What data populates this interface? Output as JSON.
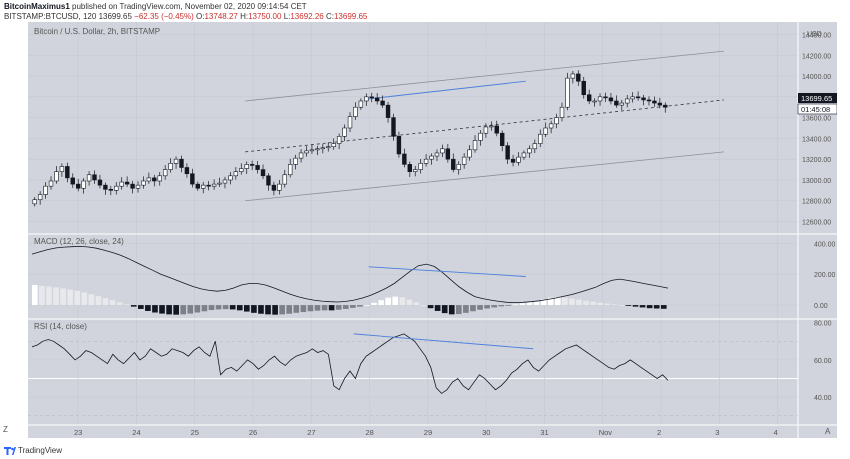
{
  "header": {
    "line1_author": "BitcoinMaximus1",
    "line1_rest": "published on TradingView.com, November 02, 2020 09:14:54 CET",
    "symbol": "BITSTAMP:BTCUSD, 120",
    "last": "13699.65",
    "change": "−62.35 (−0.45%)",
    "o_label": "O:",
    "o": "13748.27",
    "h_label": "H:",
    "h": "13750.00",
    "l_label": "L:",
    "l": "13692.26",
    "c_label": "C:",
    "c": "13699.65"
  },
  "chart_title": "Bitcoin / U.S. Dollar, 2h, BITSTAMP",
  "currency": "USD",
  "price_tag": "13699.65",
  "countdown": "01:45:08",
  "macd_label": "MACD (12, 26, close, 24)",
  "rsi_label": "RSI (14, close)",
  "footer": {
    "brand": "TradingView",
    "corner_left": "Z",
    "corner_right": "A"
  },
  "chart_data": [
    {
      "type": "candlestick",
      "title": "Bitcoin / U.S. Dollar, 2h, BITSTAMP",
      "x_ticks": [
        "23",
        "24",
        "25",
        "26",
        "27",
        "28",
        "29",
        "30",
        "31",
        "Nov",
        "2",
        "3",
        "4"
      ],
      "y_ticks": [
        "12600.00",
        "12800.00",
        "13000.00",
        "13200.00",
        "13400.00",
        "13600.00",
        "13800.00",
        "14000.00",
        "14200.00",
        "14400.00"
      ],
      "ylim": [
        12480,
        14520
      ],
      "close_series": [
        12810,
        12860,
        12940,
        12990,
        13080,
        13130,
        13020,
        12960,
        12920,
        12990,
        13050,
        13000,
        12950,
        12910,
        12900,
        12940,
        12980,
        12960,
        12920,
        12950,
        12990,
        13020,
        12990,
        13040,
        13100,
        13160,
        13200,
        13120,
        13060,
        12960,
        12920,
        12950,
        12940,
        12960,
        12970,
        13000,
        13040,
        13080,
        13110,
        13150,
        13140,
        13100,
        13040,
        12950,
        12900,
        12960,
        13050,
        13150,
        13210,
        13260,
        13280,
        13290,
        13300,
        13310,
        13320,
        13350,
        13420,
        13500,
        13610,
        13700,
        13760,
        13800,
        13790,
        13760,
        13720,
        13600,
        13420,
        13250,
        13150,
        13080,
        13100,
        13160,
        13200,
        13230,
        13260,
        13300,
        13200,
        13100,
        13150,
        13220,
        13290,
        13380,
        13450,
        13510,
        13520,
        13450,
        13330,
        13200,
        13170,
        13220,
        13260,
        13300,
        13350,
        13440,
        13500,
        13540,
        13600,
        13700,
        13980,
        14020,
        13950,
        13820,
        13760,
        13760,
        13800,
        13790,
        13760,
        13720,
        13740,
        13780,
        13800,
        13790,
        13770,
        13760,
        13740,
        13720,
        13700
      ],
      "upper_channel": [
        [
          0.285,
          13760
        ],
        [
          0.925,
          14240
        ]
      ],
      "mid_channel": [
        [
          0.285,
          13270
        ],
        [
          0.925,
          13770
        ]
      ],
      "lower_channel": [
        [
          0.285,
          12800
        ],
        [
          0.925,
          13270
        ]
      ],
      "divergence_line": [
        [
          0.45,
          13780
        ],
        [
          0.66,
          13950
        ]
      ]
    },
    {
      "type": "line",
      "title": "MACD (12, 26, close, 24)",
      "y_ticks": [
        "0.00",
        "200.00",
        "400.00"
      ],
      "ylim": [
        -90,
        460
      ],
      "macd": [
        330,
        345,
        360,
        370,
        375,
        378,
        380,
        376,
        368,
        355,
        340,
        322,
        300,
        275,
        250,
        225,
        200,
        180,
        160,
        140,
        120,
        105,
        95,
        90,
        95,
        110,
        130,
        140,
        140,
        130,
        112,
        92,
        72,
        55,
        42,
        32,
        26,
        22,
        20,
        24,
        32,
        45,
        62,
        85,
        110,
        140,
        180,
        220,
        255,
        265,
        250,
        210,
        165,
        120,
        85,
        55,
        42,
        32,
        24,
        18,
        16,
        18,
        22,
        28,
        36,
        45,
        56,
        68,
        82,
        98,
        115,
        140,
        160,
        168,
        160,
        150,
        140,
        130,
        120,
        110
      ],
      "histogram": [
        130,
        125,
        120,
        115,
        108,
        100,
        92,
        82,
        70,
        58,
        45,
        32,
        18,
        5,
        -10,
        -25,
        -38,
        -48,
        -55,
        -60,
        -62,
        -60,
        -55,
        -48,
        -40,
        -32,
        -28,
        -26,
        -28,
        -34,
        -42,
        -50,
        -56,
        -60,
        -62,
        -60,
        -56,
        -50,
        -45,
        -40,
        -36,
        -34,
        -34,
        -30,
        -25,
        -18,
        -10,
        0,
        15,
        32,
        48,
        55,
        50,
        35,
        18,
        0,
        -20,
        -38,
        -52,
        -60,
        -58,
        -50,
        -40,
        -30,
        -22,
        -15,
        -8,
        -2,
        5,
        12,
        20,
        28,
        38,
        48,
        52,
        48,
        42,
        35,
        28,
        22,
        15,
        10,
        5,
        0,
        -5,
        -10,
        -15,
        -20,
        -22,
        -24
      ],
      "divergence_line": [
        [
          0.45,
          248
        ],
        [
          0.66,
          185
        ]
      ]
    },
    {
      "type": "line",
      "title": "RSI (14, close)",
      "y_ticks": [
        "40.00",
        "60.00",
        "80.00"
      ],
      "ylim": [
        25,
        82
      ],
      "values": [
        67,
        68,
        70,
        71,
        70,
        68,
        66,
        63,
        60,
        62,
        65,
        64,
        62,
        60,
        58,
        63,
        60,
        58,
        61,
        64,
        60,
        62,
        66,
        64,
        62,
        63,
        66,
        65,
        64,
        62,
        65,
        67,
        64,
        62,
        70,
        52,
        55,
        56,
        54,
        57,
        60,
        58,
        55,
        57,
        60,
        62,
        59,
        57,
        60,
        62,
        63,
        64,
        66,
        64,
        65,
        63,
        46,
        44,
        50,
        54,
        50,
        58,
        62,
        64,
        66,
        68,
        70,
        72,
        73,
        74,
        72,
        70,
        66,
        62,
        56,
        45,
        42,
        44,
        48,
        50,
        46,
        44,
        48,
        52,
        50,
        47,
        44,
        46,
        49,
        53,
        55,
        58,
        60,
        56,
        54,
        57,
        60,
        62,
        64,
        66,
        67,
        68,
        66,
        64,
        62,
        60,
        58,
        56,
        55,
        57,
        58,
        60,
        58,
        56,
        54,
        52,
        50,
        52,
        49
      ],
      "band_upper": 70,
      "band_middle": 50,
      "band_lower": 30,
      "divergence_line": [
        [
          0.43,
          74
        ],
        [
          0.67,
          66
        ]
      ]
    }
  ]
}
